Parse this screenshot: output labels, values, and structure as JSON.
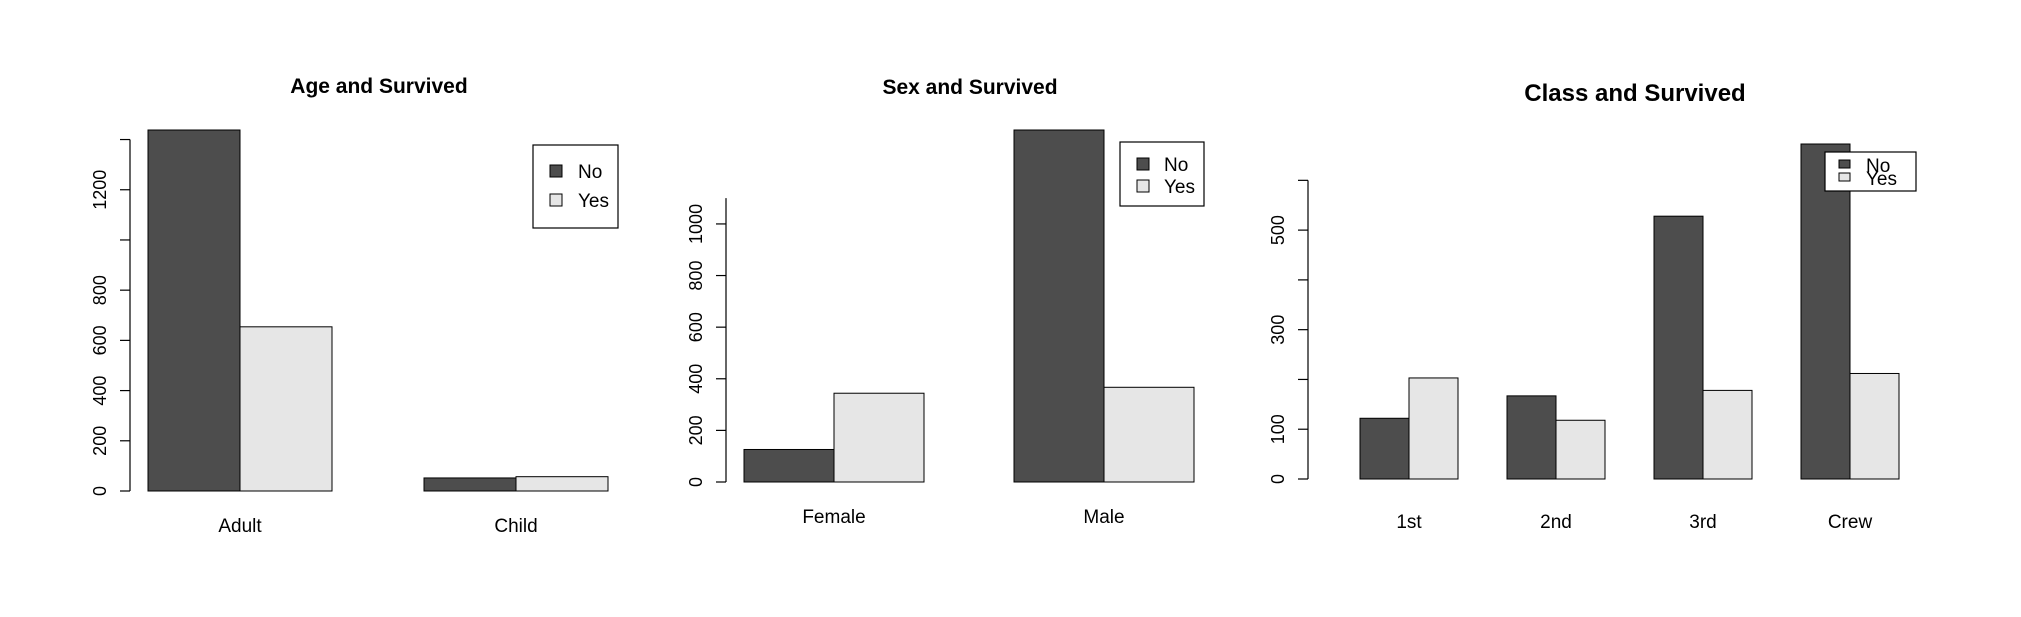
{
  "colors": {
    "No": "#4d4d4d",
    "Yes": "#e6e6e6",
    "stroke": "#000000"
  },
  "chart_data": [
    {
      "type": "bar",
      "title": "Age and Survived",
      "categories": [
        "Adult",
        "Child"
      ],
      "series": [
        {
          "name": "No",
          "values": [
            1438,
            52
          ]
        },
        {
          "name": "Yes",
          "values": [
            654,
            57
          ]
        }
      ],
      "yticks": [
        0,
        200,
        400,
        600,
        800,
        1200
      ],
      "ylim": [
        0,
        1438
      ],
      "legend": {
        "position": "top-right",
        "labels": [
          "No",
          "Yes"
        ]
      },
      "grid": false
    },
    {
      "type": "bar",
      "title": "Sex and Survived",
      "categories": [
        "Female",
        "Male"
      ],
      "series": [
        {
          "name": "No",
          "values": [
            126,
            1364
          ]
        },
        {
          "name": "Yes",
          "values": [
            344,
            367
          ]
        }
      ],
      "yticks": [
        0,
        200,
        400,
        600,
        800,
        1000
      ],
      "ylim": [
        0,
        1364
      ],
      "legend": {
        "position": "top-right",
        "labels": [
          "No",
          "Yes"
        ]
      },
      "grid": false
    },
    {
      "type": "bar",
      "title": "Class and Survived",
      "categories": [
        "1st",
        "2nd",
        "3rd",
        "Crew"
      ],
      "series": [
        {
          "name": "No",
          "values": [
            122,
            167,
            528,
            673
          ]
        },
        {
          "name": "Yes",
          "values": [
            203,
            118,
            178,
            212
          ]
        }
      ],
      "yticks": [
        0,
        100,
        300,
        500
      ],
      "ylim": [
        0,
        673
      ],
      "legend": {
        "position": "top-right",
        "labels": [
          "No",
          "Yes"
        ]
      },
      "grid": false
    }
  ]
}
